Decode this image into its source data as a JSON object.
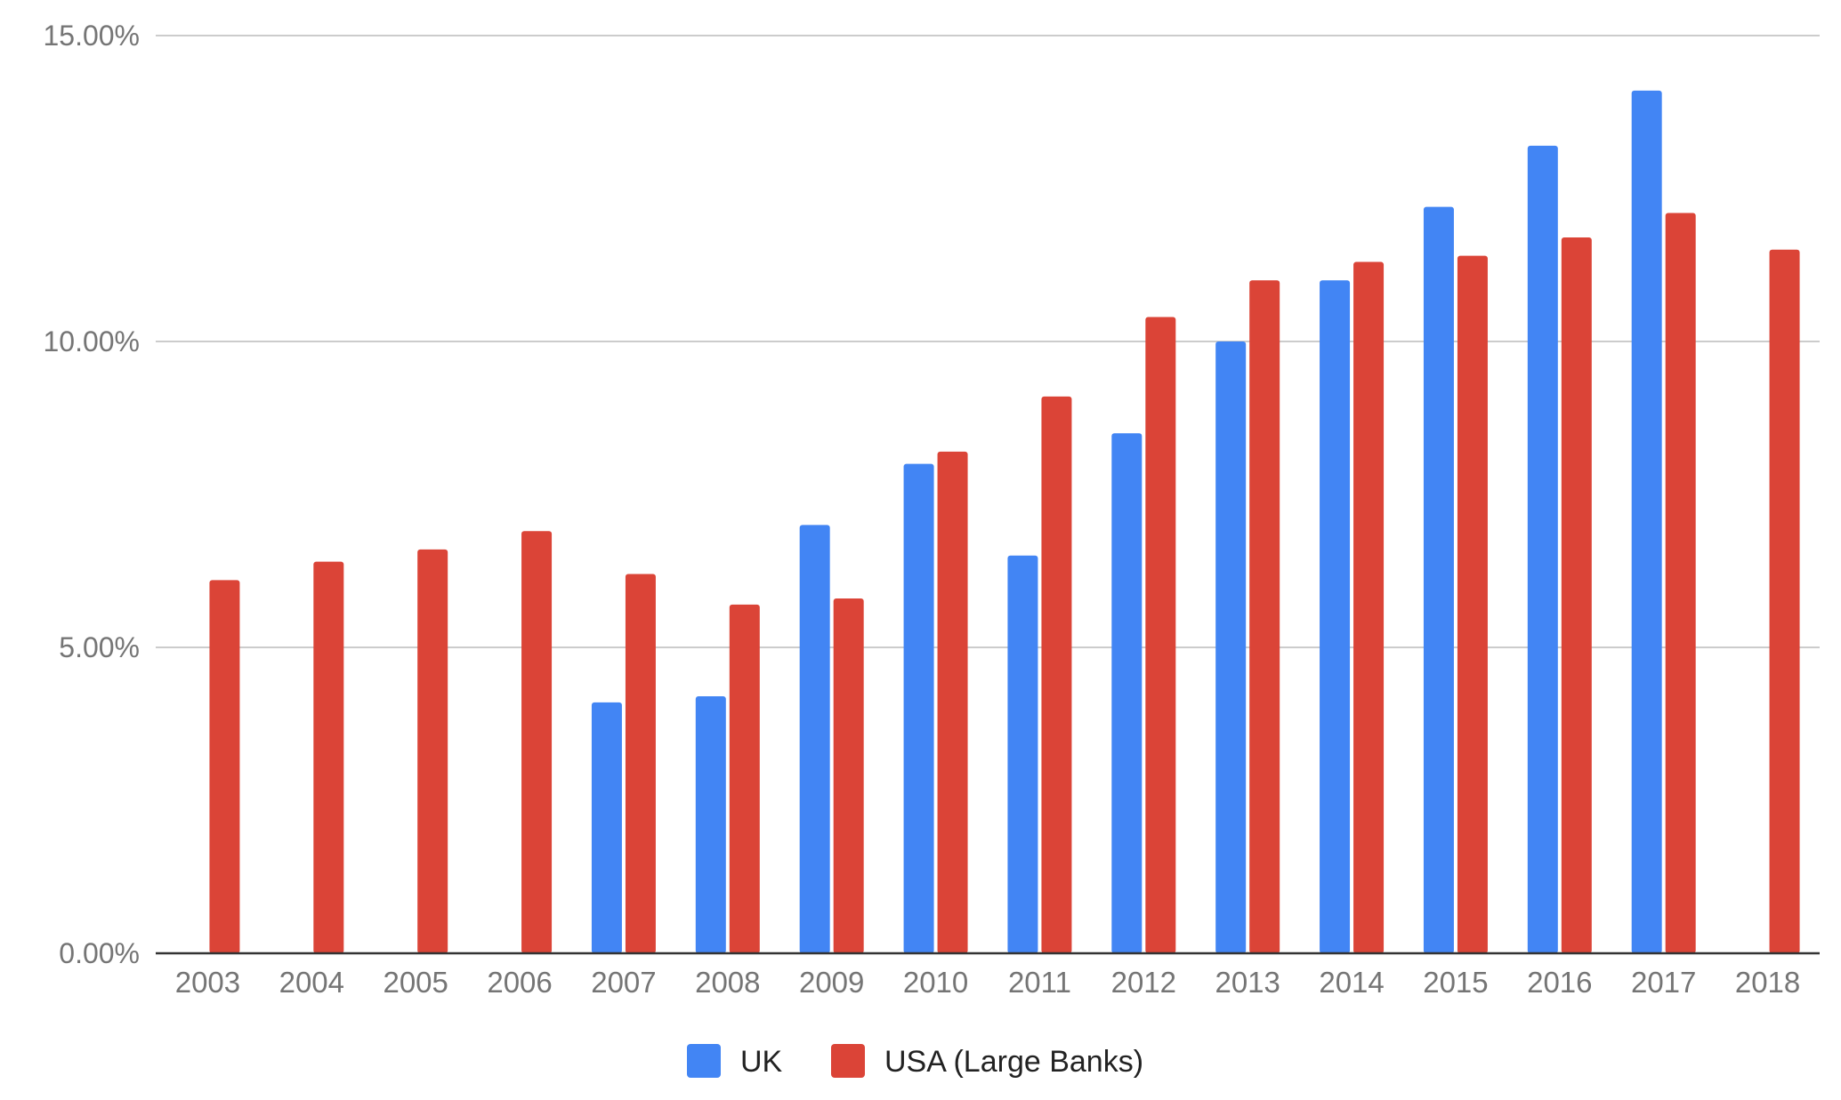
{
  "chart_data": {
    "type": "bar",
    "title": "",
    "xlabel": "",
    "ylabel": "",
    "categories": [
      "2003",
      "2004",
      "2005",
      "2006",
      "2007",
      "2008",
      "2009",
      "2010",
      "2011",
      "2012",
      "2013",
      "2014",
      "2015",
      "2016",
      "2017",
      "2018"
    ],
    "series": [
      {
        "name": "UK",
        "color": "#4285F4",
        "values": [
          null,
          null,
          null,
          null,
          4.1,
          4.2,
          7.0,
          8.0,
          6.5,
          8.5,
          10.0,
          11.0,
          12.2,
          13.2,
          14.1,
          null
        ]
      },
      {
        "name": "USA (Large Banks)",
        "color": "#DB4437",
        "values": [
          6.1,
          6.4,
          6.6,
          6.9,
          6.2,
          5.7,
          5.8,
          8.2,
          9.1,
          10.4,
          11.0,
          11.3,
          11.4,
          11.7,
          12.1,
          11.5
        ]
      }
    ],
    "ylim": [
      0,
      15
    ],
    "yticks": [
      0,
      5,
      10,
      15
    ],
    "ytick_labels": [
      "0.00%",
      "5.00%",
      "10.00%",
      "15.00%"
    ],
    "grid": true,
    "legend_position": "bottom"
  }
}
